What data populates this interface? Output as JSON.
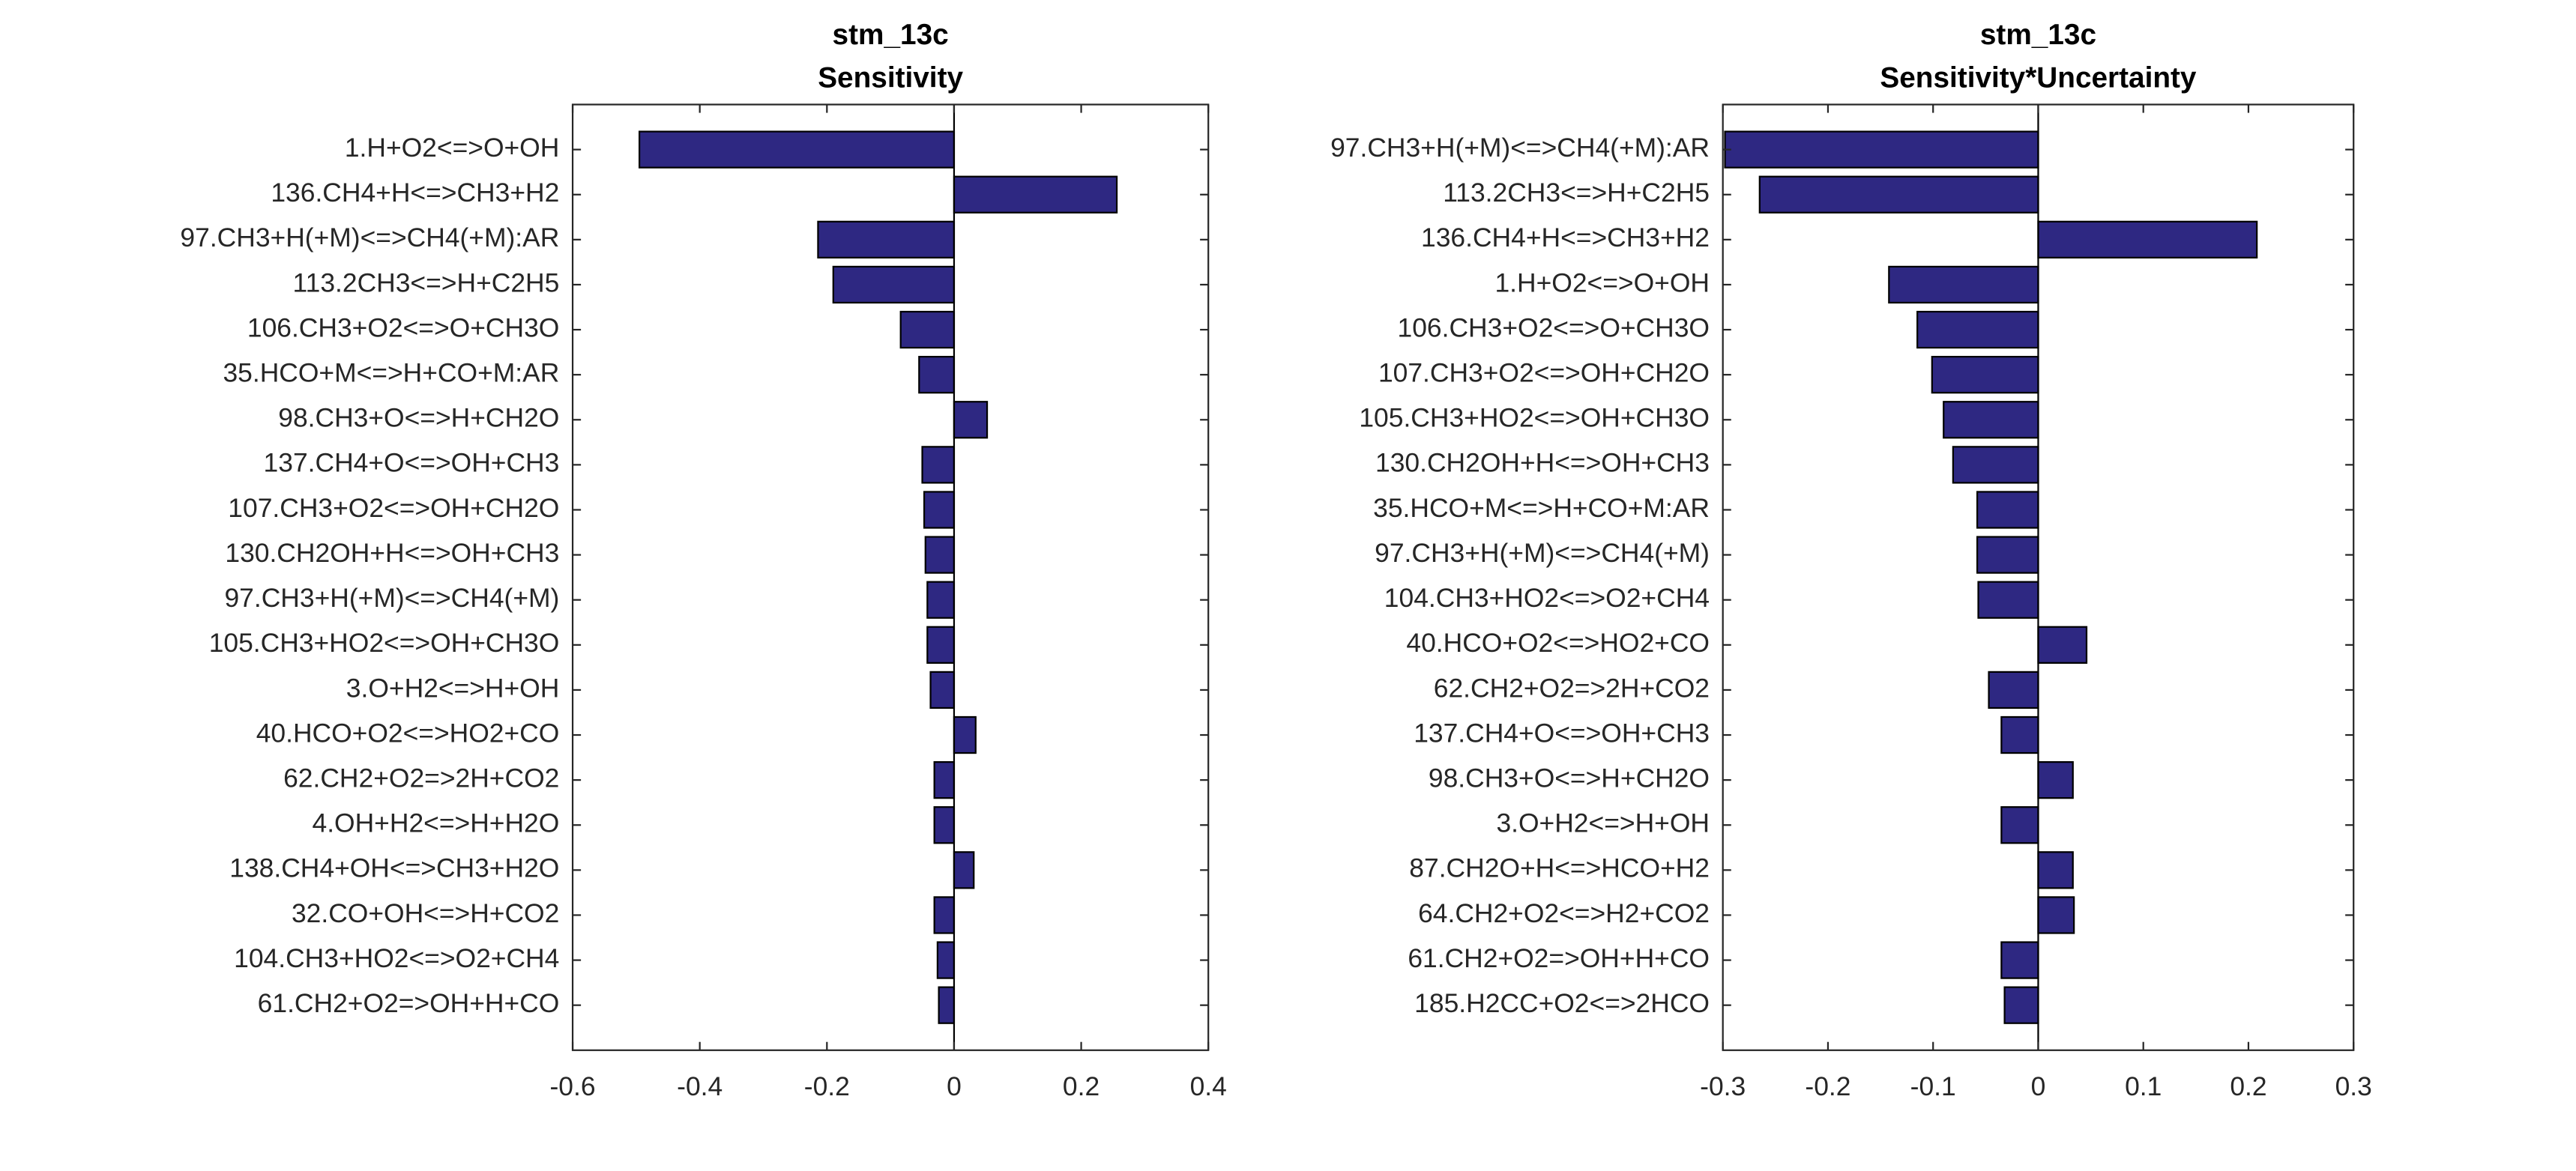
{
  "chart_data": [
    {
      "type": "bar",
      "orientation": "horizontal",
      "title": "stm_13c",
      "subtitle": "Sensitivity",
      "categories": [
        "1.H+O2<=>O+OH",
        "136.CH4+H<=>CH3+H2",
        "97.CH3+H(+M)<=>CH4(+M):AR",
        "113.2CH3<=>H+C2H5",
        "106.CH3+O2<=>O+CH3O",
        "35.HCO+M<=>H+CO+M:AR",
        "98.CH3+O<=>H+CH2O",
        "137.CH4+O<=>OH+CH3",
        "107.CH3+O2<=>OH+CH2O",
        "130.CH2OH+H<=>OH+CH3",
        "97.CH3+H(+M)<=>CH4(+M)",
        "105.CH3+HO2<=>OH+CH3O",
        "3.O+H2<=>H+OH",
        "40.HCO+O2<=>HO2+CO",
        "62.CH2+O2=>2H+CO2",
        "4.OH+H2<=>H+H2O",
        "138.CH4+OH<=>CH3+H2O",
        "32.CO+OH<=>H+CO2",
        "104.CH3+HO2<=>O2+CH4",
        "61.CH2+O2=>OH+H+CO"
      ],
      "values": [
        -0.495,
        0.256,
        -0.214,
        -0.19,
        -0.084,
        -0.055,
        0.052,
        -0.05,
        -0.047,
        -0.045,
        -0.042,
        -0.042,
        -0.037,
        0.034,
        -0.031,
        -0.031,
        0.031,
        -0.031,
        -0.026,
        -0.024
      ],
      "color": "#2e2882",
      "xlim": [
        -0.6,
        0.4
      ],
      "xticks": [
        -0.6,
        -0.4,
        -0.2,
        0,
        0.2,
        0.4
      ],
      "grid": false
    },
    {
      "type": "bar",
      "orientation": "horizontal",
      "title": "stm_13c",
      "subtitle": "Sensitivity*Uncertainty",
      "categories": [
        "97.CH3+H(+M)<=>CH4(+M):AR",
        "113.2CH3<=>H+C2H5",
        "136.CH4+H<=>CH3+H2",
        "1.H+O2<=>O+OH",
        "106.CH3+O2<=>O+CH3O",
        "107.CH3+O2<=>OH+CH2O",
        "105.CH3+HO2<=>OH+CH3O",
        "130.CH2OH+H<=>OH+CH3",
        "35.HCO+M<=>H+CO+M:AR",
        "97.CH3+H(+M)<=>CH4(+M)",
        "104.CH3+HO2<=>O2+CH4",
        "40.HCO+O2<=>HO2+CO",
        "62.CH2+O2=>2H+CO2",
        "137.CH4+O<=>OH+CH3",
        "98.CH3+O<=>H+CH2O",
        "3.O+H2<=>H+OH",
        "87.CH2O+H<=>HCO+H2",
        "64.CH2+O2<=>H2+CO2",
        "61.CH2+O2=>OH+H+CO",
        "185.H2CC+O2<=>2HCO"
      ],
      "values": [
        -0.298,
        -0.265,
        0.208,
        -0.142,
        -0.115,
        -0.101,
        -0.09,
        -0.081,
        -0.058,
        -0.058,
        -0.057,
        0.046,
        -0.047,
        -0.035,
        0.033,
        -0.035,
        0.033,
        0.034,
        -0.035,
        -0.032
      ],
      "color": "#2e2882",
      "xlim": [
        -0.3,
        0.3
      ],
      "xticks": [
        -0.3,
        -0.2,
        -0.1,
        0,
        0.1,
        0.2,
        0.3
      ],
      "grid": false
    }
  ]
}
